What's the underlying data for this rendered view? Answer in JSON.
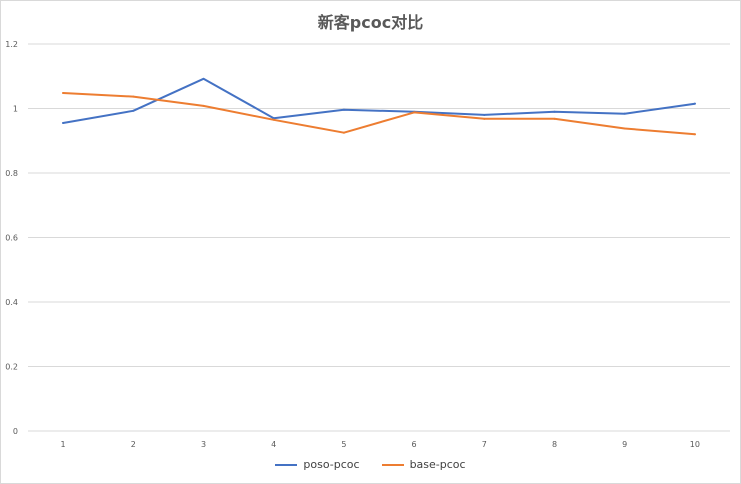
{
  "chart_data": {
    "type": "line",
    "title": "新客pcoc对比",
    "xlabel": "",
    "ylabel": "",
    "categories": [
      "1",
      "2",
      "3",
      "4",
      "5",
      "6",
      "7",
      "8",
      "9",
      "10"
    ],
    "ylim": [
      0,
      1.2
    ],
    "y_ticks": [
      "0",
      "0.2",
      "0.4",
      "0.6",
      "0.8",
      "1",
      "1.2"
    ],
    "grid": true,
    "legend_position": "bottom",
    "series": [
      {
        "name": "poso-pcoc",
        "color": "#4472c4",
        "values": [
          0.955,
          0.993,
          1.092,
          0.97,
          0.996,
          0.99,
          0.98,
          0.99,
          0.984,
          1.015
        ]
      },
      {
        "name": "base-pcoc",
        "color": "#ed7d31",
        "values": [
          1.048,
          1.037,
          1.008,
          0.965,
          0.925,
          0.988,
          0.968,
          0.968,
          0.938,
          0.92
        ]
      }
    ]
  }
}
